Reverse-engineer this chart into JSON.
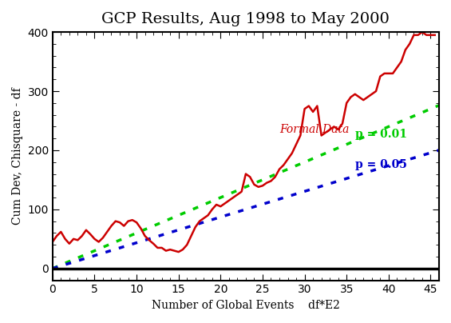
{
  "title": "GCP Results, Aug 1998 to May 2000",
  "xlabel": "Number of Global Events    df*E2",
  "ylabel": "Cum Dev, Chisquare - df",
  "xlim": [
    0,
    46
  ],
  "ylim": [
    -20,
    400
  ],
  "yticks": [
    0,
    100,
    200,
    300,
    400
  ],
  "xticks": [
    0,
    5,
    10,
    15,
    20,
    25,
    30,
    35,
    40,
    45
  ],
  "p01_label": "p = 0.01",
  "p05_label": "p = 0.05",
  "formal_label": "Formal Data",
  "p01_color": "#00CC00",
  "p05_color": "#0000CC",
  "red_color": "#CC0000",
  "p01_slope": 6.0,
  "p05_slope": 4.35,
  "red_x": [
    0,
    0.5,
    1.0,
    1.5,
    2.0,
    2.5,
    3.0,
    3.5,
    4.0,
    4.5,
    5.0,
    5.5,
    6.0,
    6.5,
    7.0,
    7.5,
    8.0,
    8.5,
    9.0,
    9.5,
    10.0,
    10.5,
    11.0,
    11.5,
    12.0,
    12.5,
    13.0,
    13.5,
    14.0,
    14.5,
    15.0,
    15.5,
    16.0,
    16.5,
    17.0,
    17.5,
    18.0,
    18.5,
    19.0,
    19.5,
    20.0,
    20.5,
    21.0,
    21.5,
    22.0,
    22.5,
    23.0,
    23.5,
    24.0,
    24.5,
    25.0,
    25.5,
    26.0,
    26.5,
    27.0,
    27.5,
    28.0,
    28.5,
    29.0,
    29.5,
    30.0,
    30.5,
    31.0,
    31.5,
    32.0,
    32.5,
    33.0,
    33.5,
    34.0,
    34.5,
    35.0,
    35.5,
    36.0,
    36.5,
    37.0,
    37.5,
    38.0,
    38.5,
    39.0,
    39.5,
    40.0,
    40.5,
    41.0,
    41.5,
    42.0,
    42.5,
    43.0,
    43.5,
    44.0,
    44.5,
    45.0,
    45.5
  ],
  "red_y": [
    45,
    55,
    62,
    50,
    42,
    50,
    48,
    55,
    65,
    58,
    50,
    45,
    52,
    62,
    72,
    80,
    78,
    72,
    80,
    82,
    78,
    68,
    55,
    48,
    42,
    35,
    35,
    30,
    32,
    30,
    28,
    32,
    40,
    55,
    70,
    80,
    85,
    90,
    100,
    108,
    105,
    110,
    115,
    120,
    125,
    130,
    160,
    155,
    142,
    138,
    140,
    145,
    148,
    155,
    168,
    175,
    185,
    195,
    210,
    225,
    270,
    275,
    265,
    275,
    225,
    230,
    235,
    240,
    235,
    245,
    280,
    290,
    295,
    290,
    285,
    290,
    295,
    300,
    325,
    330,
    330,
    330,
    340,
    350,
    370,
    380,
    395,
    395,
    400,
    395,
    395,
    395
  ]
}
